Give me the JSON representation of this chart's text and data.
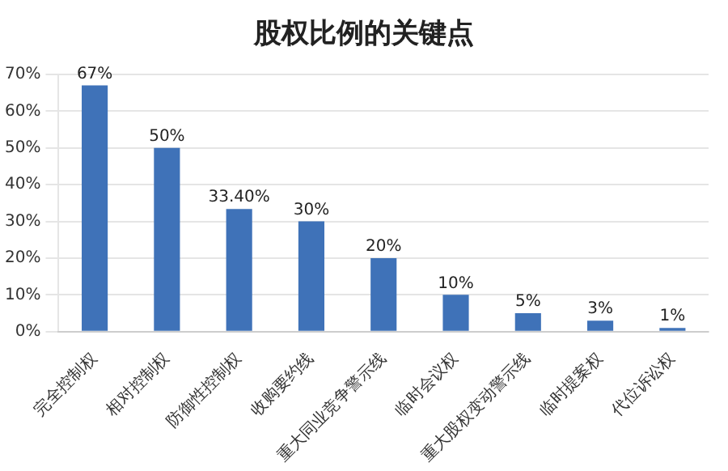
{
  "chart_data": {
    "type": "bar",
    "title": "股权比例的关键点",
    "categories": [
      "完全控制权",
      "相对控制权",
      "防御性控制权",
      "收购要约线",
      "重大同业竞争警示线",
      "临时会议权",
      "重大股权变动警示线",
      "临时提案权",
      "代位诉讼权"
    ],
    "values": [
      67,
      50,
      33.4,
      30,
      20,
      10,
      5,
      3,
      1
    ],
    "value_labels": [
      "67%",
      "50%",
      "33.40%",
      "30%",
      "20%",
      "10%",
      "5%",
      "3%",
      "1%"
    ],
    "color": "#3f72b8",
    "ylim": [
      0,
      70
    ],
    "yticks": [
      {
        "value": 0,
        "label": "0%"
      },
      {
        "value": 10,
        "label": "10%"
      },
      {
        "value": 20,
        "label": "20%"
      },
      {
        "value": 30,
        "label": "30%"
      },
      {
        "value": 40,
        "label": "40%"
      },
      {
        "value": 50,
        "label": "50%"
      },
      {
        "value": 60,
        "label": "60%"
      },
      {
        "value": 70,
        "label": "70%"
      }
    ],
    "grid": "y",
    "legend": false
  }
}
